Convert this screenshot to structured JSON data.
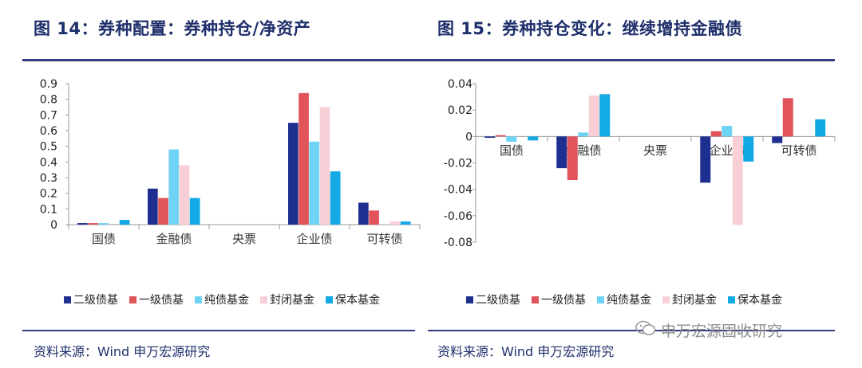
{
  "figure14": {
    "title": "图 14：券种配置：券种持仓/净资产",
    "source": "资料来源：Wind 申万宏源研究"
  },
  "figure15": {
    "title": "图 15：券种持仓变化：继续增持金融债",
    "source": "资料来源：Wind 申万宏源研究"
  },
  "watermark": {
    "text": "申万宏源固收研究"
  },
  "colors": [
    "#1f2f8f",
    "#e0545a",
    "#6fd3f5",
    "#f8cfd6",
    "#12a9e4"
  ],
  "chart_data": [
    {
      "type": "bar",
      "title": "",
      "xlabel": "",
      "ylabel": "",
      "categories": [
        "国债",
        "金融债",
        "央票",
        "企业债",
        "可转债"
      ],
      "ylim": [
        0,
        0.9
      ],
      "yticks": [
        "0.9",
        "0.8",
        "0.7",
        "0.6",
        "0.5",
        "0.4",
        "0.3",
        "0.2",
        "0.1",
        "0"
      ],
      "legend_position": "bottom",
      "series": [
        {
          "name": "二级债基",
          "values": [
            0.01,
            0.23,
            0,
            0.65,
            0.14
          ]
        },
        {
          "name": "一级债基",
          "values": [
            0.01,
            0.17,
            0,
            0.84,
            0.09
          ]
        },
        {
          "name": "纯债基金",
          "values": [
            0.01,
            0.48,
            0,
            0.53,
            0.0
          ]
        },
        {
          "name": "封闭基金",
          "values": [
            0.0,
            0.38,
            0,
            0.75,
            0.02
          ]
        },
        {
          "name": "保本基金",
          "values": [
            0.03,
            0.17,
            0,
            0.34,
            0.02
          ]
        }
      ]
    },
    {
      "type": "bar",
      "title": "",
      "xlabel": "",
      "ylabel": "",
      "categories": [
        "国债",
        "金融债",
        "央票",
        "企业债",
        "可转债"
      ],
      "ylim": [
        -0.08,
        0.04
      ],
      "yticks": [
        "0.04",
        "0.02",
        "0",
        "-0.02",
        "-0.04",
        "-0.06",
        "-0.08"
      ],
      "legend_position": "bottom",
      "series": [
        {
          "name": "二级债基",
          "values": [
            -0.001,
            -0.024,
            0,
            -0.035,
            -0.005
          ]
        },
        {
          "name": "一级债基",
          "values": [
            0.001,
            -0.033,
            0,
            0.004,
            0.029
          ]
        },
        {
          "name": "纯债基金",
          "values": [
            -0.004,
            0.003,
            0,
            0.008,
            0.0
          ]
        },
        {
          "name": "封闭基金",
          "values": [
            0.0,
            0.031,
            0,
            -0.067,
            0.0
          ]
        },
        {
          "name": "保本基金",
          "values": [
            -0.003,
            0.032,
            0,
            -0.019,
            0.013
          ]
        }
      ]
    }
  ]
}
